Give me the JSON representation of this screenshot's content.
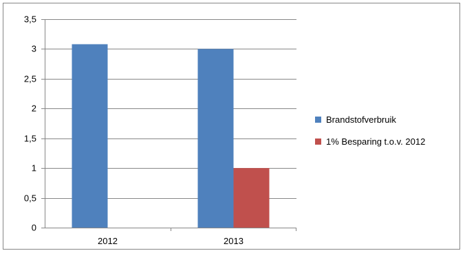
{
  "chart_data": {
    "type": "bar",
    "categories": [
      "2012",
      "2013"
    ],
    "series": [
      {
        "name": "Brandstofverbruik",
        "values": [
          3.08,
          3.0
        ],
        "color": "#4f81bd"
      },
      {
        "name": "1% Besparing t.o.v. 2012",
        "values": [
          null,
          1.0
        ],
        "color": "#c0504d"
      }
    ],
    "ylim": [
      0,
      3.5
    ],
    "yticks": [
      "0",
      "0,5",
      "1",
      "1,5",
      "2",
      "2,5",
      "3",
      "3,5"
    ],
    "ytick_values": [
      0,
      0.5,
      1,
      1.5,
      2,
      2.5,
      3,
      3.5
    ],
    "grid": true,
    "legend_position": "right",
    "title": "",
    "xlabel": "",
    "ylabel": ""
  }
}
